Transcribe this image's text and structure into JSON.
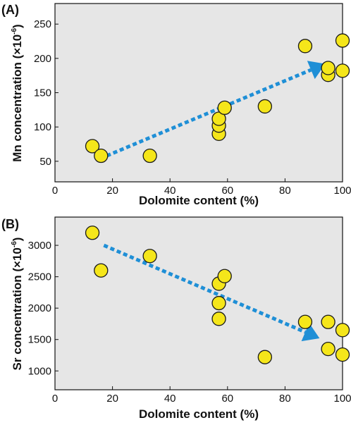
{
  "colors": {
    "background": "#e6e6e6",
    "point_fill": "#f5e61a",
    "point_stroke": "#1a1a1a",
    "arrow": "#1f8fd6"
  },
  "chart_data": [
    {
      "type": "scatter",
      "panel_label": "(A)",
      "xlabel": "Dolomite content (%)",
      "ylabel": "Mn concentration (×10",
      "ylabel_exp": "-6",
      "ylabel_close": ")",
      "xlim": [
        0,
        100
      ],
      "ylim": [
        20,
        280
      ],
      "xticks": [
        0,
        20,
        40,
        60,
        80,
        100
      ],
      "yticks": [
        50,
        100,
        150,
        200,
        250
      ],
      "grid": false,
      "trend": "increasing",
      "trend_arrow": {
        "from": [
          18,
          58
        ],
        "to": [
          94,
          192
        ]
      },
      "points": [
        {
          "x": 13,
          "y": 72
        },
        {
          "x": 16,
          "y": 58
        },
        {
          "x": 33,
          "y": 58
        },
        {
          "x": 57,
          "y": 90
        },
        {
          "x": 57,
          "y": 102
        },
        {
          "x": 57,
          "y": 112
        },
        {
          "x": 59,
          "y": 128
        },
        {
          "x": 73,
          "y": 130
        },
        {
          "x": 87,
          "y": 218
        },
        {
          "x": 95,
          "y": 176
        },
        {
          "x": 95,
          "y": 186
        },
        {
          "x": 100,
          "y": 226
        },
        {
          "x": 100,
          "y": 182
        }
      ]
    },
    {
      "type": "scatter",
      "panel_label": "(B)",
      "xlabel": "Dolomite content (%)",
      "ylabel": "Sr concentration (×10",
      "ylabel_exp": "-6",
      "ylabel_close": ")",
      "xlim": [
        0,
        100
      ],
      "ylim": [
        700,
        3450
      ],
      "xticks": [
        0,
        20,
        40,
        60,
        80,
        100
      ],
      "yticks": [
        1000,
        1500,
        2000,
        2500,
        3000
      ],
      "grid": false,
      "trend": "decreasing",
      "trend_arrow": {
        "from": [
          17,
          3000
        ],
        "to": [
          92,
          1520
        ]
      },
      "points": [
        {
          "x": 13,
          "y": 3200
        },
        {
          "x": 16,
          "y": 2600
        },
        {
          "x": 33,
          "y": 2830
        },
        {
          "x": 57,
          "y": 2390
        },
        {
          "x": 59,
          "y": 2510
        },
        {
          "x": 57,
          "y": 2080
        },
        {
          "x": 57,
          "y": 1830
        },
        {
          "x": 73,
          "y": 1220
        },
        {
          "x": 87,
          "y": 1780
        },
        {
          "x": 95,
          "y": 1780
        },
        {
          "x": 95,
          "y": 1350
        },
        {
          "x": 100,
          "y": 1650
        },
        {
          "x": 100,
          "y": 1260
        }
      ]
    }
  ]
}
